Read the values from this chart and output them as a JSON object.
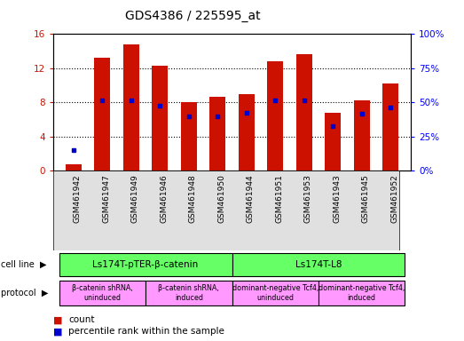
{
  "title": "GDS4386 / 225595_at",
  "samples": [
    "GSM461942",
    "GSM461947",
    "GSM461949",
    "GSM461946",
    "GSM461948",
    "GSM461950",
    "GSM461944",
    "GSM461951",
    "GSM461953",
    "GSM461943",
    "GSM461945",
    "GSM461952"
  ],
  "counts": [
    0.7,
    13.2,
    14.8,
    12.3,
    8.0,
    8.6,
    9.0,
    12.8,
    13.6,
    6.8,
    8.2,
    10.2
  ],
  "percentile_rank_pct": [
    15.0,
    51.5,
    51.5,
    47.5,
    40.0,
    40.0,
    42.5,
    51.5,
    51.5,
    32.5,
    41.5,
    46.5
  ],
  "ylim_left": [
    0,
    16
  ],
  "ylim_right": [
    0,
    100
  ],
  "yticks_left": [
    0,
    4,
    8,
    12,
    16
  ],
  "yticks_right": [
    0,
    25,
    50,
    75,
    100
  ],
  "bar_color": "#cc1100",
  "dot_color": "#0000cc",
  "bg_color": "#ffffff",
  "cell_line_groups": [
    {
      "label": "Ls174T-pTER-β-catenin",
      "start": 0,
      "end": 6,
      "color": "#66ff66"
    },
    {
      "label": "Ls174T-L8",
      "start": 6,
      "end": 12,
      "color": "#66ff66"
    }
  ],
  "protocol_groups": [
    {
      "label": "β-catenin shRNA,\nuninduced",
      "start": 0,
      "end": 3,
      "color": "#ff99ff"
    },
    {
      "label": "β-catenin shRNA,\ninduced",
      "start": 3,
      "end": 6,
      "color": "#ff99ff"
    },
    {
      "label": "dominant-negative Tcf4,\nuninduced",
      "start": 6,
      "end": 9,
      "color": "#ff99ff"
    },
    {
      "label": "dominant-negative Tcf4,\ninduced",
      "start": 9,
      "end": 12,
      "color": "#ff99ff"
    }
  ],
  "cell_line_label": "cell line",
  "protocol_label": "protocol",
  "legend_count_label": "count",
  "legend_pct_label": "percentile rank within the sample",
  "title_fontsize": 10,
  "label_fontsize": 7,
  "tick_fontsize": 7.5
}
